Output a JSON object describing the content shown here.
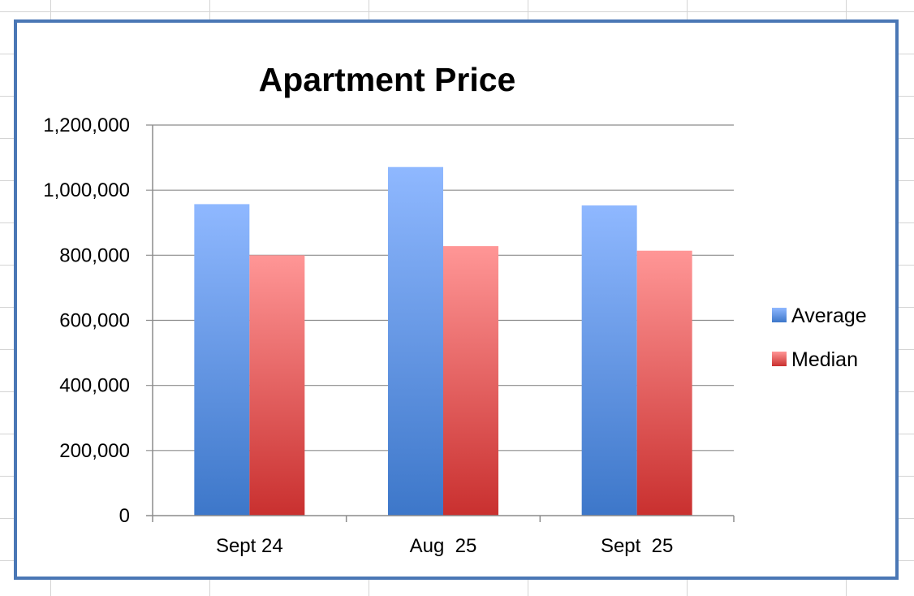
{
  "chart_data": {
    "type": "bar",
    "title": "Apartment Price",
    "xlabel": "",
    "ylabel": "",
    "categories": [
      "Sept 24",
      "Aug  25",
      "Sept  25"
    ],
    "series": [
      {
        "name": "Average",
        "values": [
          957000,
          1071000,
          953000
        ],
        "color_top": "#8fb8ff",
        "color_bottom": "#3d77c9"
      },
      {
        "name": "Median",
        "values": [
          800000,
          828000,
          814000
        ],
        "color_top": "#ff9696",
        "color_bottom": "#c9302f"
      }
    ],
    "ylim": [
      0,
      1200000
    ],
    "yticks": [
      "0",
      "200,000",
      "400,000",
      "600,000",
      "800,000",
      "1,000,000",
      "1,200,000"
    ],
    "grid": true,
    "legend_position": "right"
  }
}
